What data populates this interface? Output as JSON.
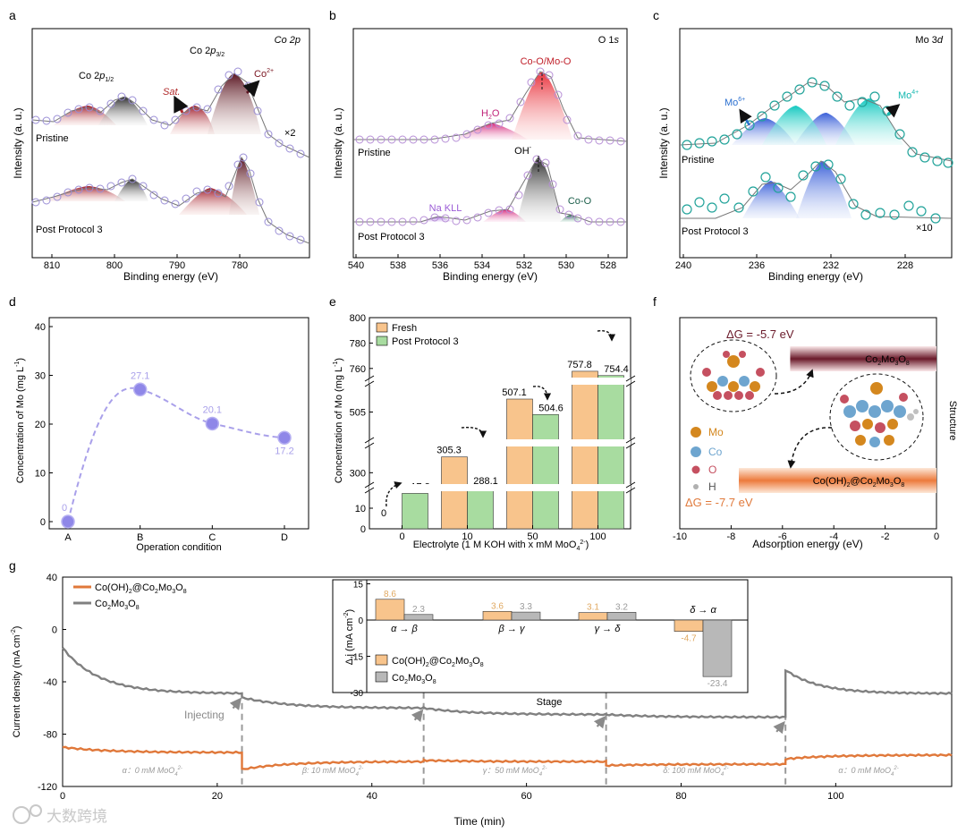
{
  "chart_data": [
    {
      "panel": "a",
      "type": "line",
      "title": "Co 2p",
      "xlabel": "Binding energy (eV)",
      "ylabel": "Intensity (a. u.)",
      "xlim": [
        812,
        773
      ],
      "xticks": [
        810,
        800,
        790,
        780
      ],
      "peak_labels": [
        "Co 2p1/2",
        "Co 2p3/2",
        "Sat.",
        "Co2+"
      ],
      "series": [
        {
          "name": "Pristine",
          "scale_note": "×2",
          "peaks": [
            {
              "x": 803.5,
              "h": 0.45,
              "w": 2.6
            },
            {
              "x": 797.2,
              "h": 0.8,
              "w": 1.8
            },
            {
              "x": 786.8,
              "h": 0.55,
              "w": 2.6
            },
            {
              "x": 781.4,
              "h": 1.0,
              "w": 1.7
            }
          ]
        },
        {
          "name": "Post Protocol 3",
          "peaks": [
            {
              "x": 803.5,
              "h": 0.3,
              "w": 2.6
            },
            {
              "x": 797.6,
              "h": 0.55,
              "w": 1.6
            },
            {
              "x": 785.6,
              "h": 0.38,
              "w": 2.6
            },
            {
              "x": 781.0,
              "h": 0.95,
              "w": 1.4
            }
          ]
        }
      ]
    },
    {
      "panel": "b",
      "type": "line",
      "title": "O 1s",
      "xlabel": "Binding energy (eV)",
      "ylabel": "Intensity (a. u.)",
      "xlim": [
        540,
        527
      ],
      "xticks": [
        540,
        538,
        536,
        534,
        532,
        530,
        528
      ],
      "peak_labels": [
        "Co-O/Mo-O",
        "H2O",
        "OH-",
        "Na KLL",
        "Co-O"
      ],
      "series": [
        {
          "name": "Pristine",
          "peaks": [
            {
              "x": 531.1,
              "h": 1.0,
              "w": 0.85
            },
            {
              "x": 532.8,
              "h": 0.3,
              "w": 1.3
            }
          ]
        },
        {
          "name": "Post Protocol 3",
          "peaks": [
            {
              "x": 531.3,
              "h": 1.0,
              "w": 0.75
            },
            {
              "x": 532.9,
              "h": 0.22,
              "w": 0.8
            },
            {
              "x": 536.0,
              "h": 0.07,
              "w": 0.9
            },
            {
              "x": 529.3,
              "h": 0.1,
              "w": 0.5
            }
          ]
        }
      ]
    },
    {
      "panel": "c",
      "type": "line",
      "title": "Mo 3d",
      "xlabel": "Binding energy (eV)",
      "ylabel": "Intensity (a. u.)",
      "xlim": [
        240,
        226
      ],
      "xticks": [
        240,
        236,
        232,
        228
      ],
      "peak_labels": [
        "Mo6+",
        "Mo4+"
      ],
      "series": [
        {
          "name": "Pristine",
          "peaks": [
            {
              "x": 235.4,
              "h": 0.45,
              "w": 1.3
            },
            {
              "x": 232.4,
              "h": 0.62,
              "w": 1.3
            },
            {
              "x": 233.4,
              "h": 0.55,
              "w": 1.1
            },
            {
              "x": 229.9,
              "h": 0.72,
              "w": 1.1
            }
          ]
        },
        {
          "name": "Post Protocol 3",
          "scale_note": "×10",
          "peaks": [
            {
              "x": 235.2,
              "h": 0.55,
              "w": 1.0
            },
            {
              "x": 232.2,
              "h": 0.9,
              "w": 0.9
            }
          ]
        }
      ]
    },
    {
      "panel": "d",
      "type": "scatter",
      "xlabel": "Operation condition",
      "ylabel": "Concentration of Mo (mg L",
      "ylabel_sup": "-1",
      "ylabel_end": ")",
      "ylim": [
        0,
        40
      ],
      "yticks": [
        0,
        10,
        20,
        30,
        40
      ],
      "categories": [
        "A",
        "B",
        "C",
        "D"
      ],
      "values": [
        0,
        27.1,
        20.1,
        17.2
      ],
      "labels": [
        "0",
        "27.1",
        "20.1",
        "17.2"
      ]
    },
    {
      "panel": "e",
      "type": "bar",
      "xlabel": "Electrolyte (1 M KOH with x mM MoO",
      "ylabel": "Concentration of Mo (mg L",
      "categories": [
        "0",
        "10",
        "50",
        "100"
      ],
      "series": [
        {
          "name": "Fresh",
          "color": "#f8c48c",
          "values": [
            0,
            305.3,
            507.1,
            757.8
          ],
          "labels": [
            "0",
            "305.3",
            "507.1",
            "757.8"
          ]
        },
        {
          "name": "Post Protocol 3",
          "color": "#a8dca0",
          "values": [
            17.2,
            288.1,
            504.6,
            754.4
          ],
          "labels": [
            "17.2",
            "288.1",
            "504.6",
            "754.4"
          ]
        }
      ],
      "yticks": [
        "0",
        "10",
        "300",
        "505",
        "760",
        "780",
        "800"
      ]
    },
    {
      "panel": "f",
      "type": "bar",
      "xlabel": "Adsorption energy (eV)",
      "ylabel": "Structure",
      "xlim": [
        -10,
        0
      ],
      "xticks": [
        -10,
        -8,
        -6,
        -4,
        -2,
        0
      ],
      "categories": [
        "Co2Mo3O8",
        "Co(OH)2@Co2Mo3O8"
      ],
      "values": [
        -5.7,
        -7.7
      ],
      "labels": [
        "ΔG = -5.7 eV",
        "ΔG = -7.7 eV"
      ],
      "legend": [
        "Mo",
        "Co",
        "O",
        "H"
      ]
    },
    {
      "panel": "g",
      "type": "line",
      "xlabel": "Time (min)",
      "ylabel": "Current density (mA cm",
      "xlim": [
        0,
        115
      ],
      "ylim": [
        -120,
        40
      ],
      "xticks": [
        0,
        20,
        40,
        60,
        80,
        100
      ],
      "yticks": [
        -120,
        -80,
        -40,
        0,
        40
      ],
      "series": [
        {
          "name": "Co(OH)2@Co2Mo3O8",
          "color": "#e0783a",
          "segments": [
            {
              "t0": 0,
              "t1": 23.2,
              "v0": -90,
              "v1": -94
            },
            {
              "t0": 23.2,
              "t1": 46.7,
              "v0": -107,
              "v1": -101
            },
            {
              "t0": 46.7,
              "t1": 70.3,
              "v0": -100,
              "v1": -101
            },
            {
              "t0": 70.3,
              "t1": 93.5,
              "v0": -104,
              "v1": -103
            },
            {
              "t0": 93.5,
              "t1": 115,
              "v0": -99,
              "v1": -96
            }
          ]
        },
        {
          "name": "Co2Mo3O8",
          "color": "#808080",
          "segments": [
            {
              "t0": 0,
              "t1": 23.2,
              "v0": -14,
              "v1": -49
            },
            {
              "t0": 23.2,
              "t1": 46.7,
              "v0": -52,
              "v1": -60
            },
            {
              "t0": 46.7,
              "t1": 70.3,
              "v0": -60,
              "v1": -65
            },
            {
              "t0": 70.3,
              "t1": 93.5,
              "v0": -65,
              "v1": -67
            },
            {
              "t0": 93.5,
              "t1": 115,
              "v0": -31,
              "v1": -49
            }
          ]
        }
      ],
      "injection_times": [
        23.2,
        46.7,
        70.3,
        93.5
      ],
      "annotation": "Injecting",
      "stages": [
        "α：0 mM MoO",
        "β: 10 mM MoO",
        "γ：50 mM MoO",
        "δ: 100 mM MoO",
        "α：0 mM MoO"
      ],
      "inset": {
        "type": "bar",
        "xlabel": "Stage",
        "ylabel": "Δ j (mA cm",
        "ylim": [
          -30,
          15
        ],
        "yticks": [
          -30,
          -15,
          0,
          15
        ],
        "categories": [
          "α → β",
          "β → γ",
          "γ → δ",
          "δ → α"
        ],
        "series": [
          {
            "name": "Co(OH)2@Co2Mo3O8",
            "color": "#f8c48c",
            "values": [
              8.6,
              3.6,
              3.1,
              -4.7
            ],
            "labels": [
              "8.6",
              "3.6",
              "3.1",
              "-4.7"
            ]
          },
          {
            "name": "Co2Mo3O8",
            "color": "#b8b8b8",
            "values": [
              2.3,
              3.3,
              3.2,
              -23.4
            ],
            "labels": [
              "2.3",
              "3.3",
              "3.2",
              "-23.4"
            ]
          }
        ]
      }
    }
  ],
  "panel_letters": [
    "a",
    "b",
    "c",
    "d",
    "e",
    "f",
    "g"
  ],
  "watermark": "大数跨境"
}
